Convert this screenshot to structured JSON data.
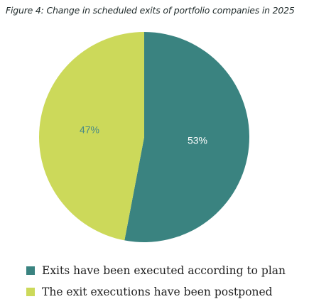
{
  "title": "Figure 4: Change in scheduled exits of portfolio companies in 2025",
  "colors": {
    "executed": "#3a8380",
    "postponed": "#ccd95a",
    "executed_label": "#ffffff",
    "postponed_label": "#4a8a86"
  },
  "chart_data": {
    "type": "pie",
    "title": "Figure 4: Change in scheduled exits of portfolio companies in 2025",
    "slices": [
      {
        "name": "Exits have been executed according to plan",
        "value": 53,
        "label": "53%",
        "color": "#3a8380"
      },
      {
        "name": "The exit executions have been postponed",
        "value": 47,
        "label": "47%",
        "color": "#ccd95a"
      }
    ],
    "legend_position": "bottom-left"
  }
}
